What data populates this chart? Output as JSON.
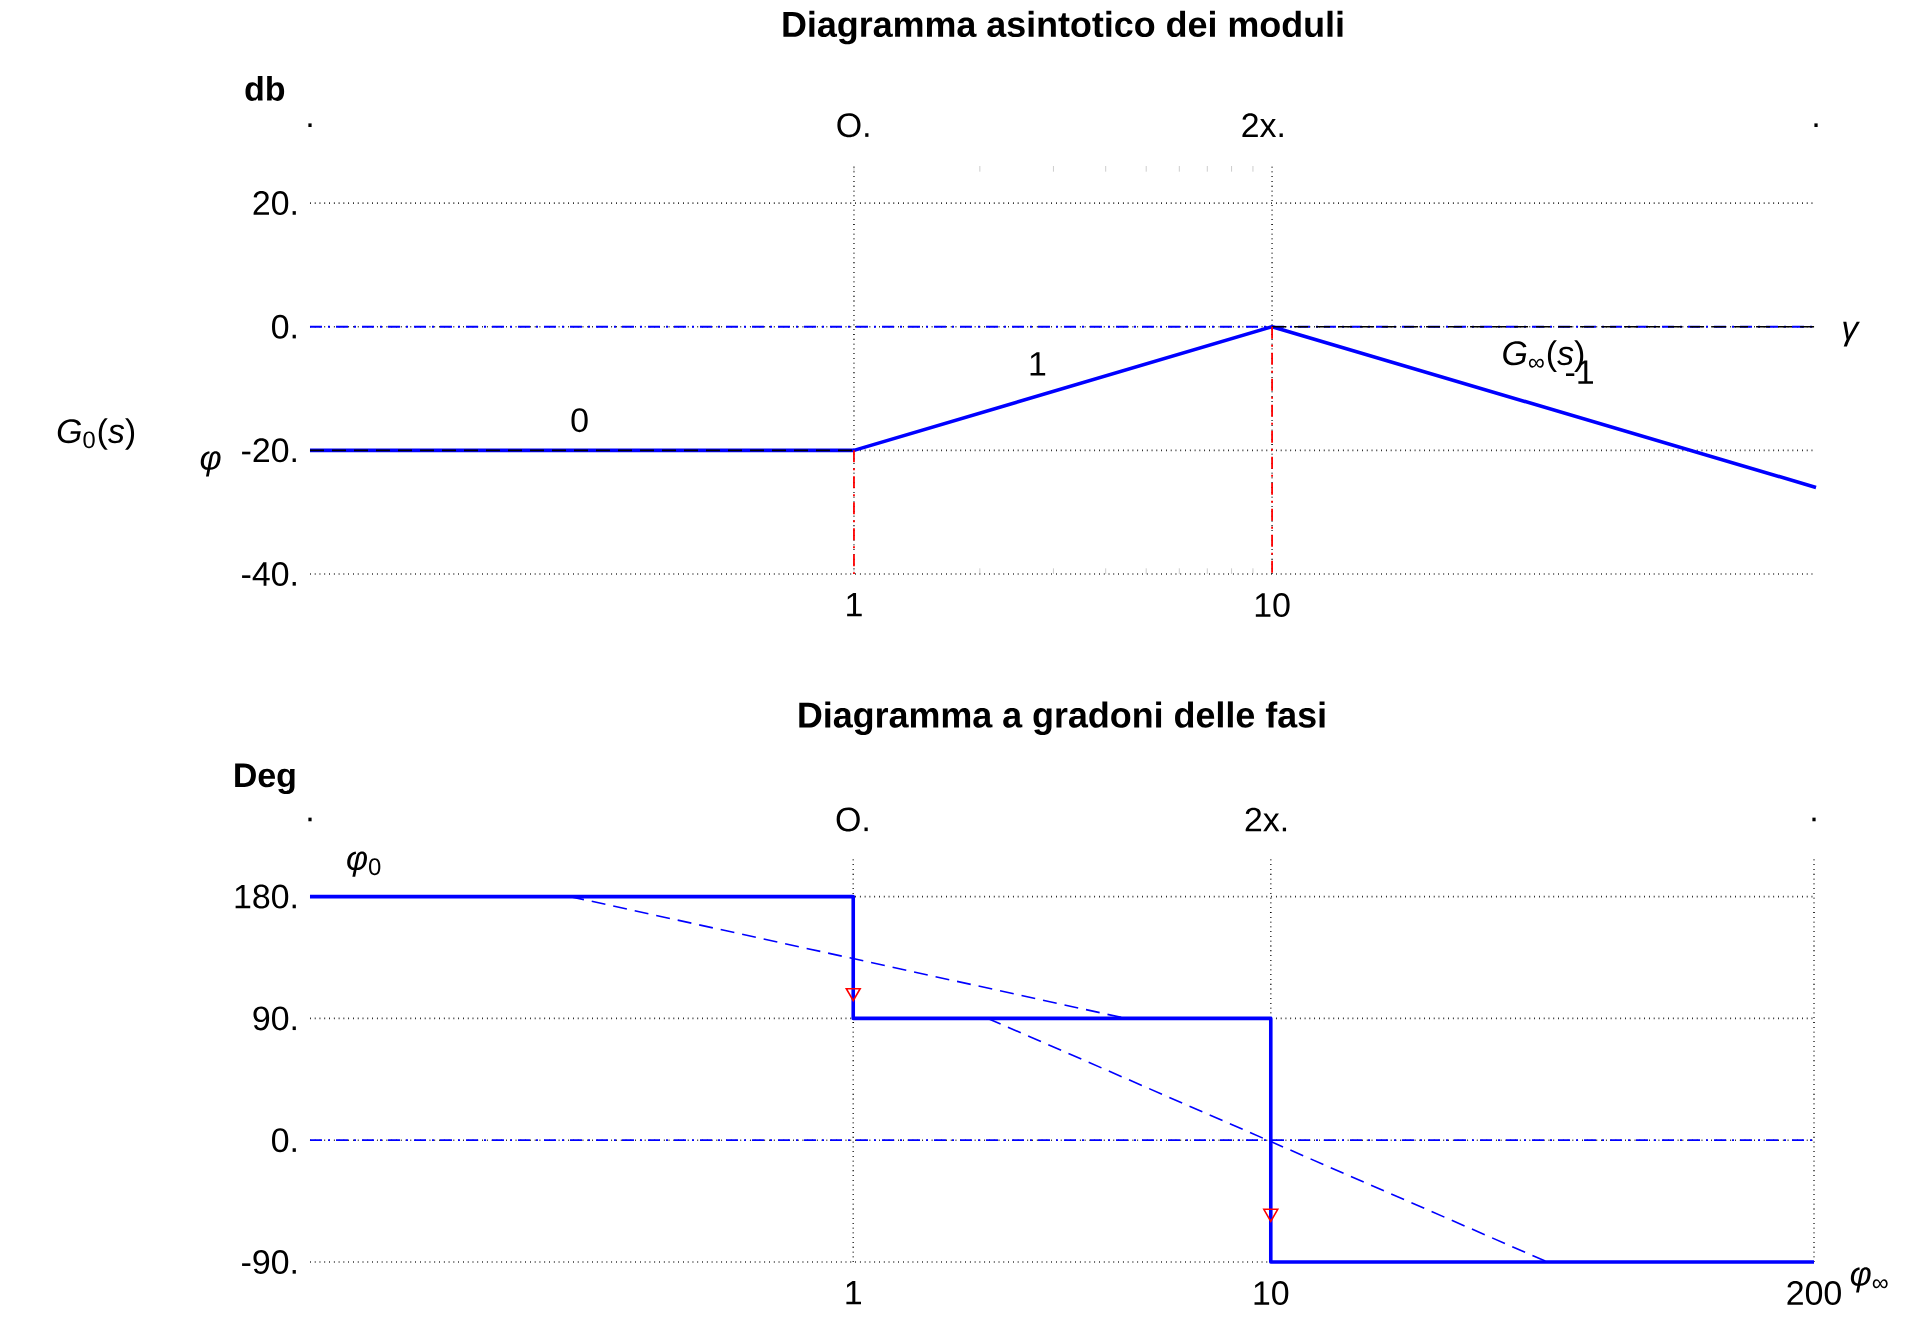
{
  "chart_data": [
    {
      "type": "line",
      "title": "Diagramma asintotico dei moduli",
      "ylabel": "db",
      "log": "x",
      "grid": true,
      "xlim": [
        0.05,
        200
      ],
      "ylim": [
        -40,
        26
      ],
      "xticks": [
        1,
        10
      ],
      "yticks": [
        {
          "value": -40,
          "label": "-40."
        },
        {
          "value": -20,
          "label": "-20."
        },
        {
          "value": 0,
          "label": "0."
        },
        {
          "value": 20,
          "label": "20."
        }
      ],
      "ref_lines": [
        {
          "axis": "y",
          "value": 0,
          "color": "#0000ff",
          "line_style": "dashdot"
        }
      ],
      "series": [
        {
          "color": "#0000ff",
          "line_style": "solid",
          "x": [
            0.05,
            1,
            10,
            200
          ],
          "values": [
            -20,
            -20,
            0,
            -26
          ]
        },
        {
          "color": "#000000",
          "line_style": "dashed",
          "x": [
            10,
            200
          ],
          "values": [
            0,
            0
          ]
        },
        {
          "color": "#000000",
          "line_style": "dashed",
          "x": [
            0.05,
            1
          ],
          "values": [
            -20,
            -20
          ]
        },
        {
          "color": "#ff0000",
          "line_style": "dashdot",
          "x": [
            1,
            1
          ],
          "values": [
            -20,
            -40
          ]
        },
        {
          "color": "#ff0000",
          "line_style": "dashdot",
          "x": [
            10,
            10
          ],
          "values": [
            0,
            -40
          ]
        }
      ],
      "annotations": [
        "0",
        "1",
        "*G*$_{∞}$(*s*)",
        "-1",
        "*γ*",
        "*G*$_{0}$(*s*)",
        "*φ*",
        ".",
        "O.",
        "2x.",
        "."
      ]
    },
    {
      "type": "line",
      "title": "Diagramma a gradoni delle fasi",
      "ylabel": "Deg",
      "log": "x",
      "grid": true,
      "xlim": [
        0.05,
        200
      ],
      "ylim": [
        -90,
        210
      ],
      "xticks": [
        1,
        10,
        200
      ],
      "yticks": [
        {
          "value": -90,
          "label": "-90."
        },
        {
          "value": 0,
          "label": "0."
        },
        {
          "value": 90,
          "label": "90."
        },
        {
          "value": 180,
          "label": "180."
        }
      ],
      "ref_lines": [
        {
          "axis": "y",
          "value": 0,
          "color": "#0000ff",
          "line_style": "dashdot"
        }
      ],
      "series": [
        {
          "color": "#0000ff",
          "line_style": "solid",
          "x": [
            0.05,
            1,
            1,
            10,
            10,
            200
          ],
          "values": [
            180,
            180,
            90,
            90,
            -90,
            -90
          ]
        },
        {
          "color": "#0000ff",
          "line_style": "dashed",
          "x": [
            0.21,
            4.5
          ],
          "values": [
            180,
            90
          ]
        },
        {
          "color": "#0000ff",
          "line_style": "dashed",
          "x": [
            2.1,
            46
          ],
          "values": [
            90,
            -90
          ]
        },
        {
          "type": "scatter",
          "color": "#ff0000",
          "marker": "triangle",
          "x": [
            1,
            10
          ],
          "values": [
            109,
            -54
          ]
        }
      ],
      "annotations": [
        "*φ*$_{0}$",
        "*φ*$_{∞}$",
        ".",
        "O.",
        "2x.",
        "."
      ]
    }
  ]
}
